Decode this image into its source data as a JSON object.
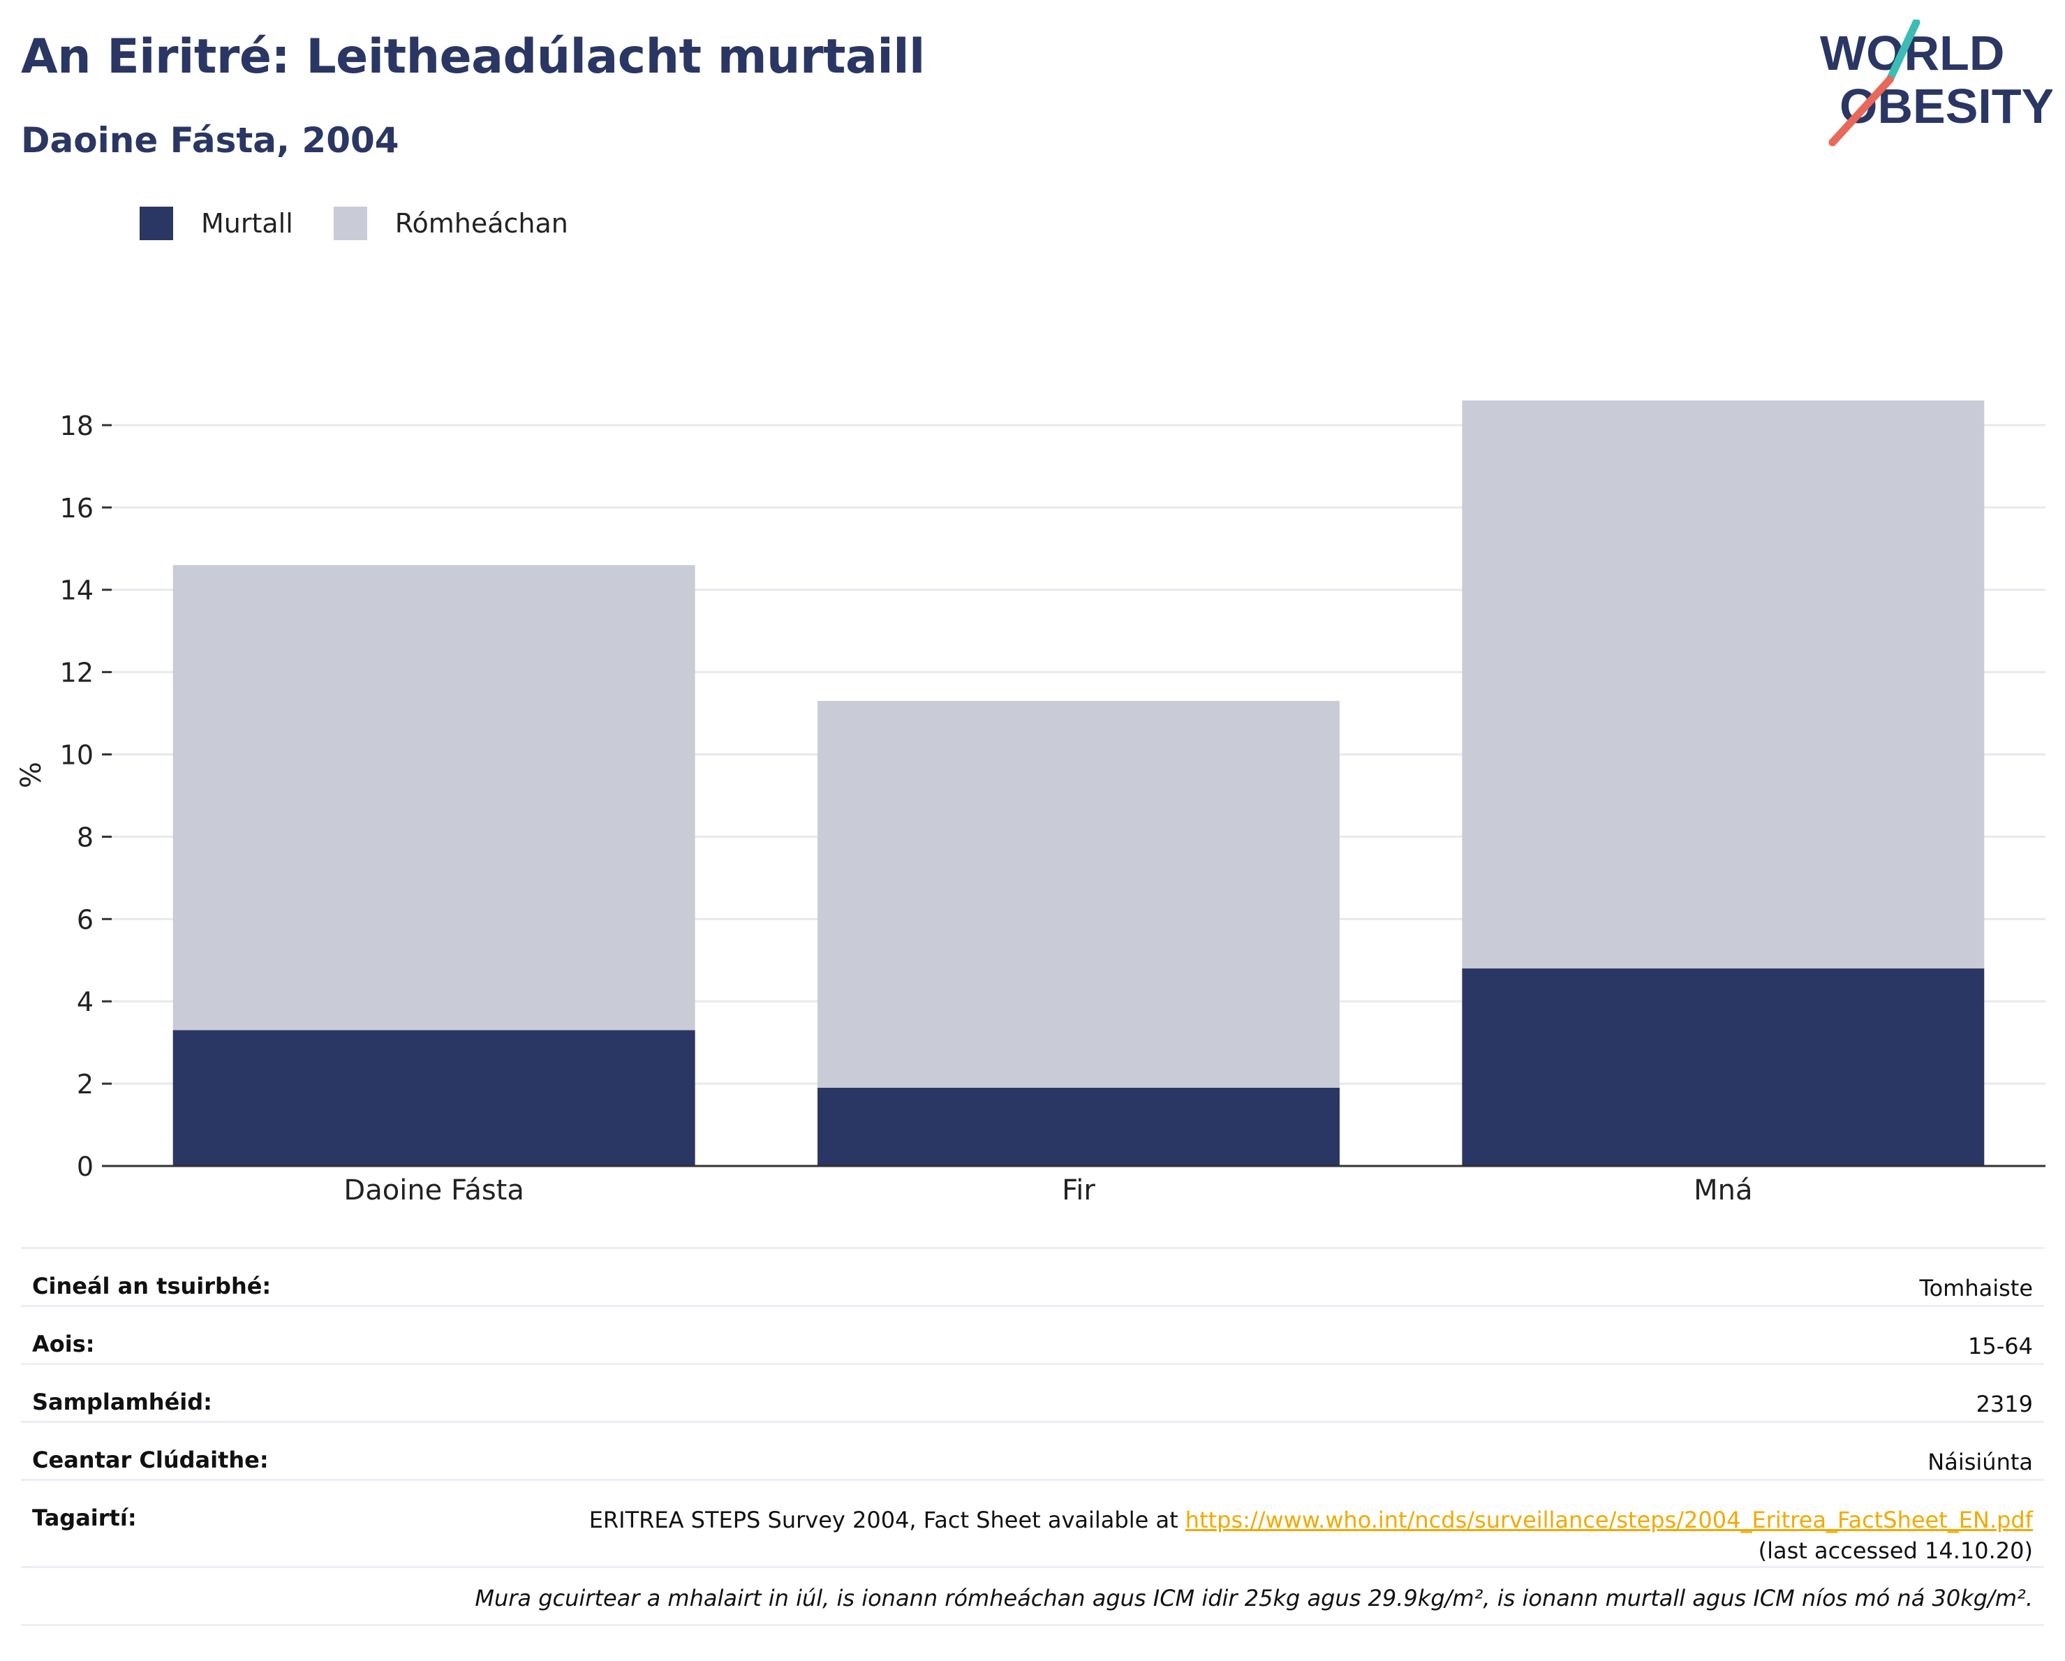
{
  "header": {
    "title": "An Eiritré: Leitheadúlacht murtaill",
    "subtitle": "Daoine Fásta, 2004"
  },
  "logo": {
    "line1": "WORLD",
    "line2": "OBESITY",
    "colors": {
      "text": "#2a3663",
      "slash_top": "#3bbdb6",
      "slash_bottom": "#e8685a"
    }
  },
  "legend": [
    {
      "label": "Murtall",
      "color": "#2a3663"
    },
    {
      "label": "Rómheáchan",
      "color": "#c9cbd6"
    }
  ],
  "chart_data": {
    "type": "bar",
    "stacked": true,
    "categories": [
      "Daoine Fásta",
      "Fir",
      "Mná"
    ],
    "series": [
      {
        "name": "Murtall",
        "color": "#2a3663",
        "values": [
          3.3,
          1.9,
          4.8
        ]
      },
      {
        "name": "Rómheáchan",
        "color": "#c9cbd6",
        "values": [
          11.3,
          9.4,
          13.8
        ]
      }
    ],
    "ylabel": "%",
    "ylim": [
      0,
      19
    ],
    "yticks": [
      0,
      2,
      4,
      6,
      8,
      10,
      12,
      14,
      16,
      18
    ],
    "grid": true,
    "legend_position": "top-left"
  },
  "info": {
    "rows": [
      {
        "key": "Cineál an tsuirbhé:",
        "value": "Tomhaiste"
      },
      {
        "key": "Aois:",
        "value": "15-64"
      },
      {
        "key": "Samplamhéid:",
        "value": "2319"
      },
      {
        "key": "Ceantar Clúdaithe:",
        "value": "Náisiúnta"
      }
    ],
    "reference": {
      "key": "Tagairtí:",
      "text": "ERITREA STEPS Survey 2004, Fact Sheet available at ",
      "link": "https://www.who.int/ncds/surveillance/steps/2004_Eritrea_FactSheet_EN.pdf",
      "accessed": "(last accessed 14.10.20)"
    },
    "note": "Mura gcuirtear a mhalairt in iúl, is ionann rómheáchan agus ICM idir 25kg agus 29.9kg/m², is ionann murtall agus ICM níos mó ná 30kg/m²."
  }
}
